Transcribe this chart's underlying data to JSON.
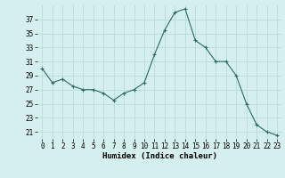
{
  "x": [
    0,
    1,
    2,
    3,
    4,
    5,
    6,
    7,
    8,
    9,
    10,
    11,
    12,
    13,
    14,
    15,
    16,
    17,
    18,
    19,
    20,
    21,
    22,
    23
  ],
  "y": [
    30,
    28,
    28.5,
    27.5,
    27,
    27,
    26.5,
    25.5,
    26.5,
    27,
    28,
    32,
    35.5,
    38,
    38.5,
    34,
    33,
    31,
    31,
    29,
    25,
    22,
    21,
    20.5
  ],
  "line_color": "#2d6b5e",
  "marker_color": "#2d6b5e",
  "bg_color": "#d4efed",
  "grid_color": "#b8dcd8",
  "xlabel": "Humidex (Indice chaleur)",
  "yticks": [
    21,
    23,
    25,
    27,
    29,
    31,
    33,
    35,
    37
  ],
  "ylim": [
    20,
    39
  ],
  "xlim": [
    -0.5,
    23.5
  ],
  "label_fontsize": 6.5,
  "tick_fontsize": 5.5
}
